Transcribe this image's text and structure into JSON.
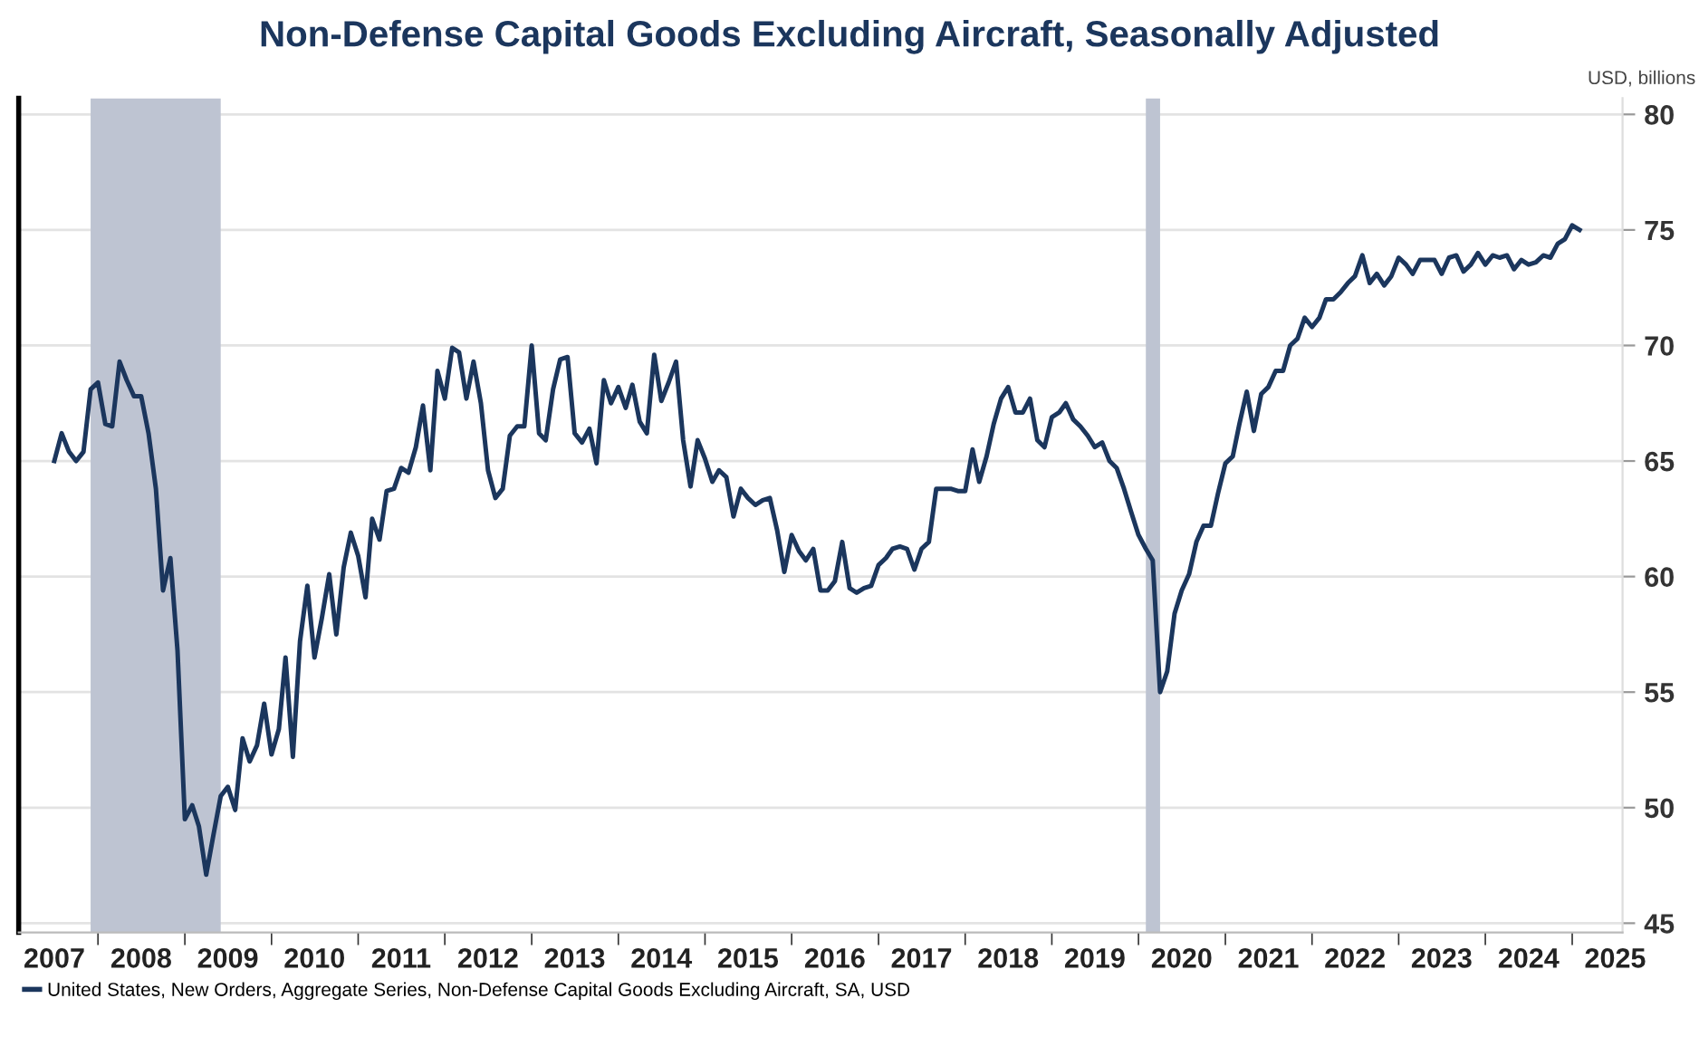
{
  "chart_data": {
    "type": "line",
    "title": "Non-Defense Capital Goods Excluding Aircraft, Seasonally Adjusted",
    "ylabel": "USD, billions",
    "x": [
      "2007-07",
      "2007-08",
      "2007-09",
      "2007-10",
      "2007-11",
      "2007-12",
      "2008-01",
      "2008-02",
      "2008-03",
      "2008-04",
      "2008-05",
      "2008-06",
      "2008-07",
      "2008-08",
      "2008-09",
      "2008-10",
      "2008-11",
      "2008-12",
      "2009-01",
      "2009-02",
      "2009-03",
      "2009-04",
      "2009-05",
      "2009-06",
      "2009-07",
      "2009-08",
      "2009-09",
      "2009-10",
      "2009-11",
      "2009-12",
      "2010-01",
      "2010-02",
      "2010-03",
      "2010-04",
      "2010-05",
      "2010-06",
      "2010-07",
      "2010-08",
      "2010-09",
      "2010-10",
      "2010-11",
      "2010-12",
      "2011-01",
      "2011-02",
      "2011-03",
      "2011-04",
      "2011-05",
      "2011-06",
      "2011-07",
      "2011-08",
      "2011-09",
      "2011-10",
      "2011-11",
      "2011-12",
      "2012-01",
      "2012-02",
      "2012-03",
      "2012-04",
      "2012-05",
      "2012-06",
      "2012-07",
      "2012-08",
      "2012-09",
      "2012-10",
      "2012-11",
      "2012-12",
      "2013-01",
      "2013-02",
      "2013-03",
      "2013-04",
      "2013-05",
      "2013-06",
      "2013-07",
      "2013-08",
      "2013-09",
      "2013-10",
      "2013-11",
      "2013-12",
      "2014-01",
      "2014-02",
      "2014-03",
      "2014-04",
      "2014-05",
      "2014-06",
      "2014-07",
      "2014-08",
      "2014-09",
      "2014-10",
      "2014-11",
      "2014-12",
      "2015-01",
      "2015-02",
      "2015-03",
      "2015-04",
      "2015-05",
      "2015-06",
      "2015-07",
      "2015-08",
      "2015-09",
      "2015-10",
      "2015-11",
      "2015-12",
      "2016-01",
      "2016-02",
      "2016-03",
      "2016-04",
      "2016-05",
      "2016-06",
      "2016-07",
      "2016-08",
      "2016-09",
      "2016-10",
      "2016-11",
      "2016-12",
      "2017-01",
      "2017-02",
      "2017-03",
      "2017-04",
      "2017-05",
      "2017-06",
      "2017-07",
      "2017-08",
      "2017-09",
      "2017-10",
      "2017-11",
      "2017-12",
      "2018-01",
      "2018-02",
      "2018-03",
      "2018-04",
      "2018-05",
      "2018-06",
      "2018-07",
      "2018-08",
      "2018-09",
      "2018-10",
      "2018-11",
      "2018-12",
      "2019-01",
      "2019-02",
      "2019-03",
      "2019-04",
      "2019-05",
      "2019-06",
      "2019-07",
      "2019-08",
      "2019-09",
      "2019-10",
      "2019-11",
      "2019-12",
      "2020-01",
      "2020-02",
      "2020-03",
      "2020-04",
      "2020-05",
      "2020-06",
      "2020-07",
      "2020-08",
      "2020-09",
      "2020-10",
      "2020-11",
      "2020-12",
      "2021-01",
      "2021-02",
      "2021-03",
      "2021-04",
      "2021-05",
      "2021-06",
      "2021-07",
      "2021-08",
      "2021-09",
      "2021-10",
      "2021-11",
      "2021-12",
      "2022-01",
      "2022-02",
      "2022-03",
      "2022-04",
      "2022-05",
      "2022-06",
      "2022-07",
      "2022-08",
      "2022-09",
      "2022-10",
      "2022-11",
      "2022-12",
      "2023-01",
      "2023-02",
      "2023-03",
      "2023-04",
      "2023-05",
      "2023-06",
      "2023-07",
      "2023-08",
      "2023-09",
      "2023-10",
      "2023-11",
      "2023-12",
      "2024-01",
      "2024-02",
      "2024-03",
      "2024-04",
      "2024-05",
      "2024-06",
      "2024-07",
      "2024-08",
      "2024-09",
      "2024-10",
      "2024-11",
      "2024-12",
      "2025-01",
      "2025-02"
    ],
    "series": [
      {
        "name": "United States, New Orders, Aggregate Series, Non-Defense Capital Goods Excluding Aircraft, SA, USD",
        "color": "#1b365d",
        "values": [
          65.0,
          66.2,
          65.4,
          65.0,
          65.4,
          68.1,
          68.4,
          66.6,
          66.5,
          69.3,
          68.5,
          67.8,
          67.8,
          66.2,
          63.8,
          59.4,
          60.8,
          56.8,
          49.5,
          50.1,
          49.2,
          47.1,
          48.8,
          50.5,
          50.9,
          49.9,
          53.0,
          52.0,
          52.7,
          54.5,
          52.3,
          53.4,
          56.5,
          52.2,
          57.2,
          59.6,
          56.5,
          58.2,
          60.1,
          57.5,
          60.4,
          61.9,
          60.9,
          59.1,
          62.5,
          61.6,
          63.7,
          63.8,
          64.7,
          64.5,
          65.6,
          67.4,
          64.6,
          68.9,
          67.7,
          69.9,
          69.7,
          67.7,
          69.3,
          67.5,
          64.6,
          63.4,
          63.8,
          66.1,
          66.5,
          66.5,
          70.0,
          66.2,
          65.9,
          68.1,
          69.4,
          69.5,
          66.2,
          65.8,
          66.4,
          64.9,
          68.5,
          67.5,
          68.2,
          67.3,
          68.3,
          66.7,
          66.2,
          69.6,
          67.6,
          68.4,
          69.3,
          65.9,
          63.9,
          65.9,
          65.1,
          64.1,
          64.6,
          64.3,
          62.6,
          63.8,
          63.4,
          63.1,
          63.3,
          63.4,
          62.0,
          60.2,
          61.8,
          61.1,
          60.7,
          61.2,
          59.4,
          59.4,
          59.8,
          61.5,
          59.5,
          59.3,
          59.5,
          59.6,
          60.5,
          60.8,
          61.2,
          61.3,
          61.2,
          60.3,
          61.2,
          61.5,
          63.8,
          63.8,
          63.8,
          63.7,
          63.7,
          65.5,
          64.1,
          65.2,
          66.6,
          67.7,
          68.2,
          67.1,
          67.1,
          67.7,
          65.9,
          65.6,
          66.9,
          67.1,
          67.5,
          66.8,
          66.5,
          66.1,
          65.6,
          65.8,
          65.0,
          64.7,
          63.8,
          62.8,
          61.8,
          61.2,
          60.7,
          55.0,
          55.9,
          58.4,
          59.4,
          60.1,
          61.5,
          62.2,
          62.2,
          63.6,
          64.9,
          65.2,
          66.6,
          68.0,
          66.3,
          67.9,
          68.2,
          68.9,
          68.9,
          70.0,
          70.3,
          71.2,
          70.8,
          71.2,
          72.0,
          72.0,
          72.3,
          72.7,
          73.0,
          73.9,
          72.7,
          73.1,
          72.6,
          73.0,
          73.8,
          73.5,
          73.1,
          73.7,
          73.7,
          73.7,
          73.1,
          73.8,
          73.9,
          73.2,
          73.5,
          74.0,
          73.5,
          73.9,
          73.8,
          73.9,
          73.3,
          73.7,
          73.5,
          73.6,
          73.9,
          73.8,
          74.4,
          74.6,
          75.2,
          75.0
        ]
      }
    ],
    "xlim": [
      "2007-02",
      "2025-08"
    ],
    "xticks": [
      {
        "value": "2007-07",
        "label": "2007"
      },
      {
        "value": "2008-07",
        "label": "2008"
      },
      {
        "value": "2009-07",
        "label": "2009"
      },
      {
        "value": "2010-07",
        "label": "2010"
      },
      {
        "value": "2011-07",
        "label": "2011"
      },
      {
        "value": "2012-07",
        "label": "2012"
      },
      {
        "value": "2013-07",
        "label": "2013"
      },
      {
        "value": "2014-07",
        "label": "2014"
      },
      {
        "value": "2015-07",
        "label": "2015"
      },
      {
        "value": "2016-07",
        "label": "2016"
      },
      {
        "value": "2017-07",
        "label": "2017"
      },
      {
        "value": "2018-07",
        "label": "2018"
      },
      {
        "value": "2019-07",
        "label": "2019"
      },
      {
        "value": "2020-07",
        "label": "2020"
      },
      {
        "value": "2021-07",
        "label": "2021"
      },
      {
        "value": "2022-07",
        "label": "2022"
      },
      {
        "value": "2023-07",
        "label": "2023"
      },
      {
        "value": "2024-07",
        "label": "2024"
      },
      {
        "value": "2025-07",
        "label": "2025"
      },
      {
        "value": "2008-01",
        "label": null
      },
      {
        "value": "2009-01",
        "label": null
      },
      {
        "value": "2010-01",
        "label": null
      },
      {
        "value": "2011-01",
        "label": null
      },
      {
        "value": "2012-01",
        "label": null
      },
      {
        "value": "2013-01",
        "label": null
      },
      {
        "value": "2014-01",
        "label": null
      },
      {
        "value": "2015-01",
        "label": null
      },
      {
        "value": "2016-01",
        "label": null
      },
      {
        "value": "2017-01",
        "label": null
      },
      {
        "value": "2018-01",
        "label": null
      },
      {
        "value": "2019-01",
        "label": null
      },
      {
        "value": "2020-01",
        "label": null
      },
      {
        "value": "2021-01",
        "label": null
      },
      {
        "value": "2022-01",
        "label": null
      },
      {
        "value": "2023-01",
        "label": null
      },
      {
        "value": "2024-01",
        "label": null
      },
      {
        "value": "2025-01",
        "label": null
      }
    ],
    "ylim": [
      44.6,
      80.7
    ],
    "yticks": [
      45,
      50,
      55,
      60,
      65,
      70,
      75,
      80
    ],
    "bands": [
      {
        "axis": "x",
        "from": "2007-12",
        "to": "2009-06",
        "color": "#bec4d2"
      },
      {
        "axis": "x",
        "from": "2020-02",
        "to": "2020-04",
        "color": "#bec4d2"
      }
    ],
    "grid": "y",
    "legend": "bottom left",
    "line_style": "solid",
    "marker": "none"
  }
}
